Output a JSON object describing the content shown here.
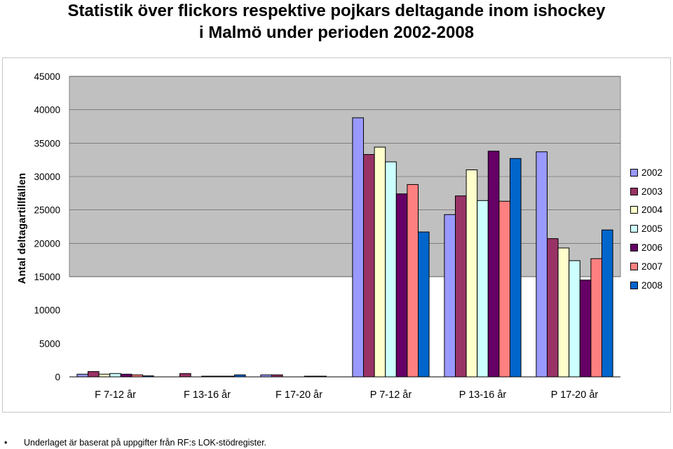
{
  "title": {
    "line1": "Statistik över flickors respektive pojkars deltagande inom ishockey",
    "line2": "i Malmö under perioden 2002-2008"
  },
  "footnote": {
    "bullet": "•",
    "text": "Underlaget är baserat på uppgifter från RF:s LOK-stödregister."
  },
  "chart_data": {
    "type": "bar",
    "title": "Statistik över flickors respektive pojkars deltagande inom ishockey i Malmö under perioden 2002-2008",
    "xlabel": "",
    "ylabel": "Antal deltagartillfällen",
    "ylim": [
      0,
      45000
    ],
    "yticks": [
      "45000",
      "40000",
      "35000",
      "30000",
      "25000",
      "20000",
      "15000",
      "10000",
      "5000",
      "0"
    ],
    "grid": true,
    "legend_position": "right",
    "plot_background": "#c0c0c0",
    "categories": [
      "F 7-12 år",
      "F 13-16 år",
      "F 17-20 år",
      "P 7-12 år",
      "P 13-16 år",
      "P 17-20 år"
    ],
    "series": [
      {
        "name": "2002",
        "color": "#9999ff",
        "values": [
          400,
          0,
          300,
          38800,
          24300,
          33700
        ]
      },
      {
        "name": "2003",
        "color": "#993366",
        "values": [
          800,
          500,
          300,
          33300,
          27100,
          20700
        ]
      },
      {
        "name": "2004",
        "color": "#ffffcc",
        "values": [
          400,
          0,
          0,
          34400,
          31000,
          19300
        ]
      },
      {
        "name": "2005",
        "color": "#ccffff",
        "values": [
          500,
          100,
          0,
          32200,
          26400,
          17400
        ]
      },
      {
        "name": "2006",
        "color": "#660066",
        "values": [
          400,
          100,
          100,
          27400,
          33800,
          14500
        ]
      },
      {
        "name": "2007",
        "color": "#ff8080",
        "values": [
          300,
          100,
          100,
          28800,
          26300,
          17700
        ]
      },
      {
        "name": "2008",
        "color": "#0066cc",
        "values": [
          150,
          300,
          0,
          21700,
          32700,
          22000
        ]
      }
    ]
  }
}
